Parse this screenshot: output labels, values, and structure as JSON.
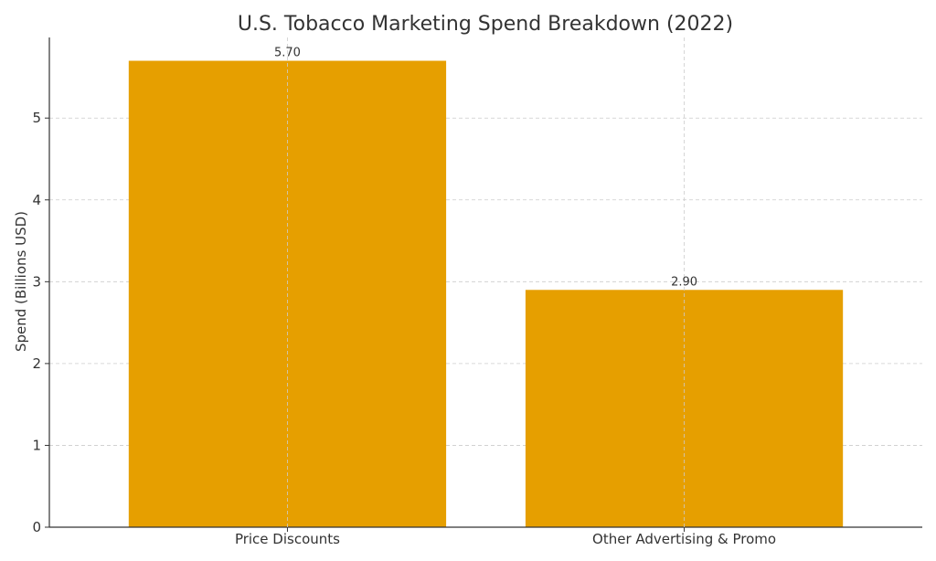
{
  "chart_data": {
    "type": "bar",
    "title": "U.S. Tobacco Marketing Spend Breakdown (2022)",
    "xlabel": "",
    "ylabel": "Spend (Billions USD)",
    "categories": [
      "Price Discounts",
      "Other Advertising & Promo"
    ],
    "values": [
      5.7,
      2.9
    ],
    "value_labels": [
      "5.70",
      "2.90"
    ],
    "ylim": [
      0,
      5.985
    ],
    "yticks": [
      0,
      1,
      2,
      3,
      4,
      5
    ],
    "grid": true,
    "bar_color": "#E69F00"
  }
}
